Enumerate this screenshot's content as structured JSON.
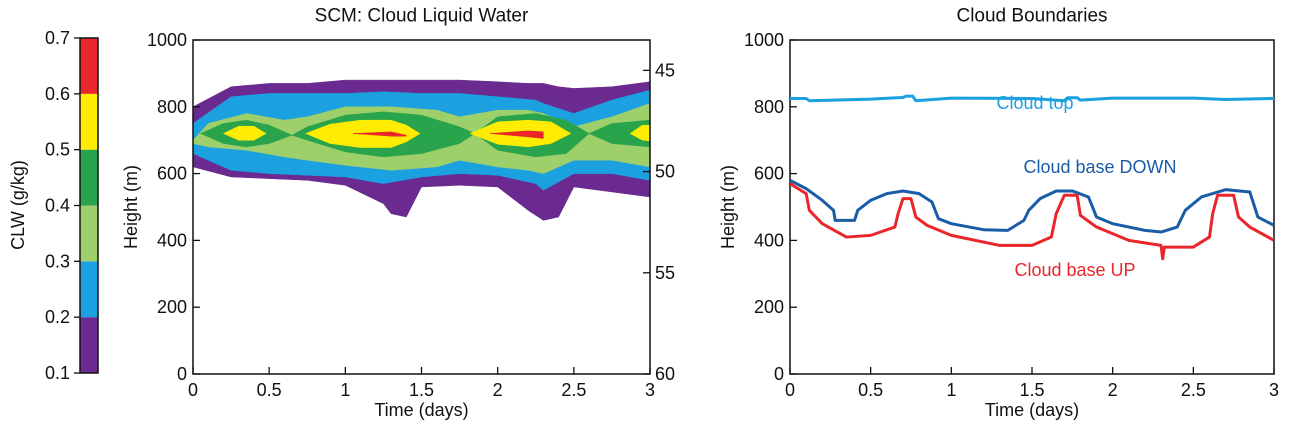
{
  "chart_data": [
    {
      "type": "contour",
      "title": "SCM: Cloud Liquid Water",
      "xlabel": "Time (days)",
      "ylabel": "Height (m)",
      "xlim": [
        0,
        3
      ],
      "xticks": [
        0,
        0.5,
        1,
        1.5,
        2,
        2.5,
        3
      ],
      "ylim": [
        0,
        1000
      ],
      "yticks": [
        0,
        200,
        400,
        600,
        800,
        1000
      ],
      "y2lim": [
        43.5,
        60
      ],
      "y2ticks": [
        45,
        50,
        55,
        60
      ],
      "colorbar": {
        "label": "CLW (g/kg)",
        "lim": [
          0.1,
          0.7
        ],
        "ticks": [
          0.1,
          0.2,
          0.3,
          0.4,
          0.5,
          0.6,
          0.7
        ],
        "colors": [
          "#6b2a8f",
          "#1ba0e0",
          "#9dcf6b",
          "#2aa44c",
          "#ffec00",
          "#e8262b"
        ]
      },
      "contours": [
        {
          "x": [
            0,
            0.25,
            0.5,
            0.75,
            1,
            1.25,
            1.3,
            1.4,
            1.5,
            1.75,
            2,
            2.2,
            2.3,
            2.4,
            2.5,
            2.75,
            3
          ],
          "top": [
            800,
            860,
            870,
            870,
            880,
            880,
            880,
            880,
            880,
            880,
            875,
            870,
            870,
            860,
            855,
            860,
            875
          ],
          "bottom": [
            620,
            590,
            585,
            580,
            565,
            510,
            480,
            470,
            560,
            565,
            560,
            490,
            460,
            470,
            560,
            545,
            530
          ]
        },
        {
          "x": [
            0,
            0.25,
            0.5,
            0.75,
            1,
            1.25,
            1.5,
            1.75,
            2,
            2.25,
            2.3,
            2.5,
            2.75,
            3
          ],
          "top": [
            750,
            830,
            840,
            840,
            840,
            845,
            840,
            840,
            830,
            820,
            810,
            780,
            820,
            850
          ],
          "bottom": [
            660,
            610,
            600,
            595,
            590,
            570,
            590,
            600,
            595,
            570,
            550,
            600,
            600,
            580
          ]
        },
        {
          "x": [
            0,
            0.1,
            0.35,
            0.6,
            0.75,
            1,
            1.3,
            1.6,
            1.75,
            2,
            2.2,
            2.3,
            2.5,
            2.75,
            3
          ],
          "top": [
            700,
            750,
            780,
            760,
            770,
            800,
            800,
            790,
            770,
            790,
            790,
            780,
            740,
            770,
            810
          ],
          "bottom": [
            690,
            680,
            670,
            650,
            640,
            625,
            610,
            620,
            640,
            620,
            610,
            600,
            640,
            640,
            620
          ]
        },
        {
          "x": [
            0.05,
            0.2,
            0.35,
            0.5,
            0.65,
            0.75,
            1,
            1.25,
            1.5,
            1.75,
            1.85,
            2,
            2.25,
            2.45,
            2.6,
            2.75,
            3
          ],
          "top": [
            720,
            750,
            760,
            745,
            715,
            740,
            775,
            785,
            775,
            740,
            720,
            770,
            780,
            760,
            720,
            750,
            760
          ],
          "bottom": [
            720,
            690,
            680,
            690,
            715,
            700,
            665,
            650,
            660,
            690,
            720,
            670,
            650,
            660,
            720,
            690,
            680
          ]
        },
        {
          "x": [
            0.2,
            0.3,
            0.4,
            0.48,
            0.6,
            0.74,
            0.9,
            1.1,
            1.3,
            1.4,
            1.49,
            1.6,
            1.82,
            2,
            2.2,
            2.35,
            2.48,
            2.6,
            2.87,
            2.95,
            3
          ],
          "top": [
            720,
            742,
            742,
            720,
            null,
            720,
            748,
            760,
            760,
            745,
            720,
            null,
            720,
            755,
            760,
            755,
            720,
            null,
            720,
            745,
            745
          ],
          "bottom": [
            720,
            700,
            700,
            720,
            null,
            720,
            690,
            678,
            678,
            695,
            720,
            null,
            720,
            688,
            680,
            690,
            720,
            null,
            720,
            700,
            698
          ]
        },
        {
          "x": [
            1.05,
            1.3,
            1.4,
            1.5,
            1.95,
            2.2,
            2.3
          ],
          "top": [
            720,
            725,
            715,
            null,
            720,
            728,
            725
          ],
          "bottom": [
            720,
            712,
            712,
            null,
            720,
            710,
            705
          ]
        }
      ]
    },
    {
      "type": "line",
      "title": "Cloud Boundaries",
      "xlabel": "Time (days)",
      "ylabel": "Height (m)",
      "xlim": [
        0,
        3
      ],
      "xticks": [
        0,
        0.5,
        1,
        1.5,
        2,
        2.5,
        3
      ],
      "ylim": [
        0,
        1000
      ],
      "yticks": [
        0,
        200,
        400,
        600,
        800,
        1000
      ],
      "series": [
        {
          "name": "Cloud top",
          "color": "#1ba0e0",
          "x": [
            0,
            0.1,
            0.12,
            0.5,
            0.7,
            0.72,
            0.76,
            0.78,
            1,
            1.5,
            1.7,
            1.72,
            1.78,
            1.8,
            2,
            2.5,
            2.7,
            3
          ],
          "values": [
            825,
            825,
            818,
            823,
            828,
            832,
            832,
            818,
            826,
            825,
            818,
            827,
            827,
            820,
            826,
            826,
            822,
            825
          ]
        },
        {
          "name": "Cloud base DOWN",
          "color": "#1a5ca8",
          "x": [
            0,
            0.1,
            0.2,
            0.27,
            0.28,
            0.4,
            0.42,
            0.5,
            0.6,
            0.7,
            0.8,
            0.88,
            0.92,
            1.0,
            1.2,
            1.35,
            1.45,
            1.48,
            1.55,
            1.65,
            1.75,
            1.85,
            1.9,
            2.0,
            2.2,
            2.3,
            2.4,
            2.45,
            2.55,
            2.7,
            2.85,
            2.9,
            3
          ],
          "values": [
            580,
            555,
            520,
            490,
            460,
            460,
            490,
            520,
            540,
            548,
            540,
            515,
            465,
            450,
            432,
            430,
            460,
            490,
            525,
            548,
            548,
            530,
            470,
            450,
            430,
            425,
            440,
            490,
            530,
            552,
            545,
            470,
            445
          ]
        },
        {
          "name": "Cloud base UP",
          "color": "#e8262b",
          "x": [
            0,
            0.1,
            0.12,
            0.2,
            0.35,
            0.5,
            0.65,
            0.67,
            0.7,
            0.75,
            0.78,
            0.85,
            1,
            1.3,
            1.5,
            1.62,
            1.65,
            1.7,
            1.78,
            1.8,
            1.9,
            2.1,
            2.3,
            2.31,
            2.32,
            2.5,
            2.6,
            2.62,
            2.65,
            2.75,
            2.78,
            2.85,
            3
          ],
          "values": [
            570,
            540,
            490,
            450,
            410,
            415,
            440,
            480,
            525,
            525,
            470,
            445,
            415,
            385,
            385,
            410,
            480,
            535,
            535,
            475,
            440,
            400,
            385,
            345,
            380,
            380,
            410,
            480,
            535,
            535,
            470,
            440,
            400
          ]
        }
      ]
    }
  ]
}
